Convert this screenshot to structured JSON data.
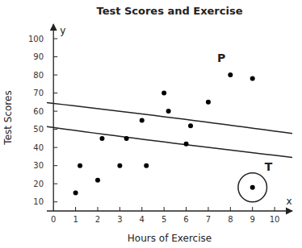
{
  "chart_data": {
    "type": "scatter",
    "title": "Test Scores and Exercise",
    "x_label": "Hours of Exercise",
    "y_label": "Test Scores",
    "xlim": [
      -0.3,
      10.8
    ],
    "ylim": [
      5,
      108
    ],
    "xticks": [
      0,
      1,
      2,
      3,
      4,
      5,
      6,
      7,
      8,
      9,
      10
    ],
    "yticks": [
      10,
      20,
      30,
      40,
      50,
      60,
      70,
      80,
      90,
      100
    ],
    "grid": false,
    "series": [
      {
        "color": "#000000",
        "x": [
          1.0,
          1.2,
          2.0,
          2.2,
          3.0,
          3.3,
          4.0,
          4.2,
          5.0,
          5.2,
          6.0,
          6.2,
          7.0,
          8.0,
          9.0
        ],
        "values": [
          15,
          30,
          22,
          45,
          30,
          45,
          55,
          30,
          70,
          60,
          42,
          52,
          65,
          80,
          78
        ]
      },
      {
        "color": "#000000",
        "x": [
          9.0
        ],
        "values": [
          18
        ]
      }
    ],
    "ellipse": {
      "cx": 5.0,
      "cy": 50,
      "width": 7.5,
      "height": 65,
      "angle": 32
    },
    "circle": {
      "cx": 9.0,
      "cy": 18,
      "rx": 0.65,
      "ry": 8
    },
    "axis_names": [
      "x",
      "y"
    ],
    "annotations": [
      {
        "text": "P",
        "x": 7.4,
        "y": 87
      },
      {
        "text": "T",
        "x": 9.55,
        "y": 27
      }
    ]
  }
}
